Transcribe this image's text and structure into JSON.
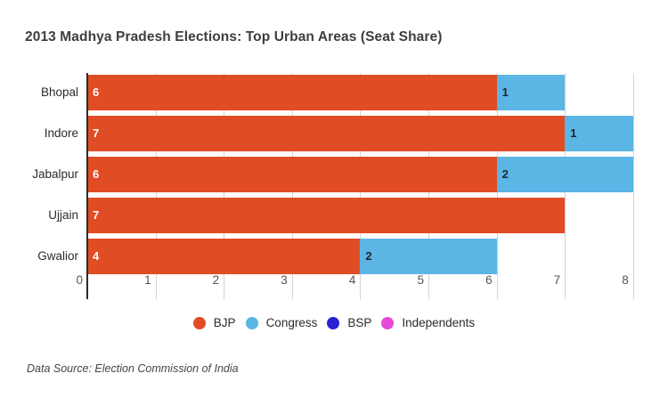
{
  "title": "2013 Madhya Pradesh Elections: Top Urban Areas (Seat Share)",
  "footer": "Data Source: Election Commission of India",
  "background_color": "#ffffff",
  "chart_data": {
    "type": "bar",
    "orientation": "horizontal",
    "stacked": true,
    "title": "2013 Madhya Pradesh Elections: Top Urban Areas (Seat Share)",
    "categories": [
      "Bhopal",
      "Indore",
      "Jabalpur",
      "Ujjain",
      "Gwalior"
    ],
    "series": [
      {
        "name": "BJP",
        "color": "#e04d25",
        "label_color": "#ffffff",
        "values": [
          6,
          7,
          6,
          7,
          4
        ]
      },
      {
        "name": "Congress",
        "color": "#5bb5e5",
        "label_color": "#1b2531",
        "values": [
          1,
          1,
          2,
          0,
          2
        ]
      },
      {
        "name": "BSP",
        "color": "#2922d3",
        "label_color": "#ffffff",
        "values": [
          0,
          0,
          0,
          0,
          0
        ]
      },
      {
        "name": "Independents",
        "color": "#e64ad5",
        "label_color": "#ffffff",
        "values": [
          0,
          0,
          0,
          0,
          0
        ]
      }
    ],
    "xlabel": "",
    "ylabel": "",
    "xlim": [
      0,
      8
    ],
    "x_ticks": [
      0,
      1,
      2,
      3,
      4,
      5,
      6,
      7,
      8
    ],
    "grid": true,
    "gridline_color": "#d4d4d4",
    "axis_line_color": "#2b2b2b",
    "tick_label_color": "#555555",
    "category_label_color": "#2b2b2b",
    "legend_position": "bottom"
  }
}
